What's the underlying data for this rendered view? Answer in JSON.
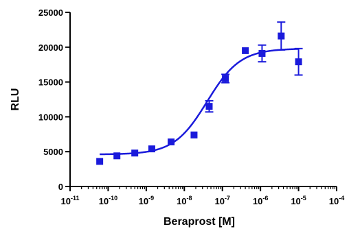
{
  "chart_data": {
    "type": "scatter",
    "xlabel": "Beraprost [M]",
    "ylabel": "RLU",
    "x_scale": "log",
    "x_tick_labels": [
      {
        "base": "10",
        "exp": "-11"
      },
      {
        "base": "10",
        "exp": "-10"
      },
      {
        "base": "10",
        "exp": "-9"
      },
      {
        "base": "10",
        "exp": "-8"
      },
      {
        "base": "10",
        "exp": "-7"
      },
      {
        "base": "10",
        "exp": "-6"
      },
      {
        "base": "10",
        "exp": "-5"
      },
      {
        "base": "10",
        "exp": "-4"
      }
    ],
    "y_ticks": [
      0,
      5000,
      10000,
      15000,
      20000,
      25000
    ],
    "y_tick_labels": [
      "0",
      "5000",
      "10000",
      "15000",
      "20000",
      "25000"
    ],
    "xlim": [
      1e-11,
      0.0001
    ],
    "ylim": [
      0,
      25000
    ],
    "grid": false,
    "series_color": "#1a1adb",
    "points": [
      {
        "x": 6e-11,
        "y": 3600,
        "err": 0
      },
      {
        "x": 1.7e-10,
        "y": 4400,
        "err": 0
      },
      {
        "x": 5e-10,
        "y": 4800,
        "err": 0
      },
      {
        "x": 1.4e-09,
        "y": 5400,
        "err": 0
      },
      {
        "x": 4.5e-09,
        "y": 6400,
        "err": 0
      },
      {
        "x": 1.8e-08,
        "y": 7400,
        "err": 0
      },
      {
        "x": 4.5e-08,
        "y": 11500,
        "err": 800
      },
      {
        "x": 1.2e-07,
        "y": 15500,
        "err": 600
      },
      {
        "x": 4e-07,
        "y": 19500,
        "err": 0
      },
      {
        "x": 1.1e-06,
        "y": 19100,
        "err": 1200
      },
      {
        "x": 3.5e-06,
        "y": 21600,
        "err": 2000
      },
      {
        "x": 1e-05,
        "y": 17900,
        "err": 1900
      }
    ],
    "fit": {
      "model": "sigmoidal-dose-response",
      "bottom": 4600,
      "top": 19800,
      "logEC50": -7.4,
      "hill": 1.0,
      "x_from": 6e-11,
      "x_to": 1e-05
    }
  }
}
